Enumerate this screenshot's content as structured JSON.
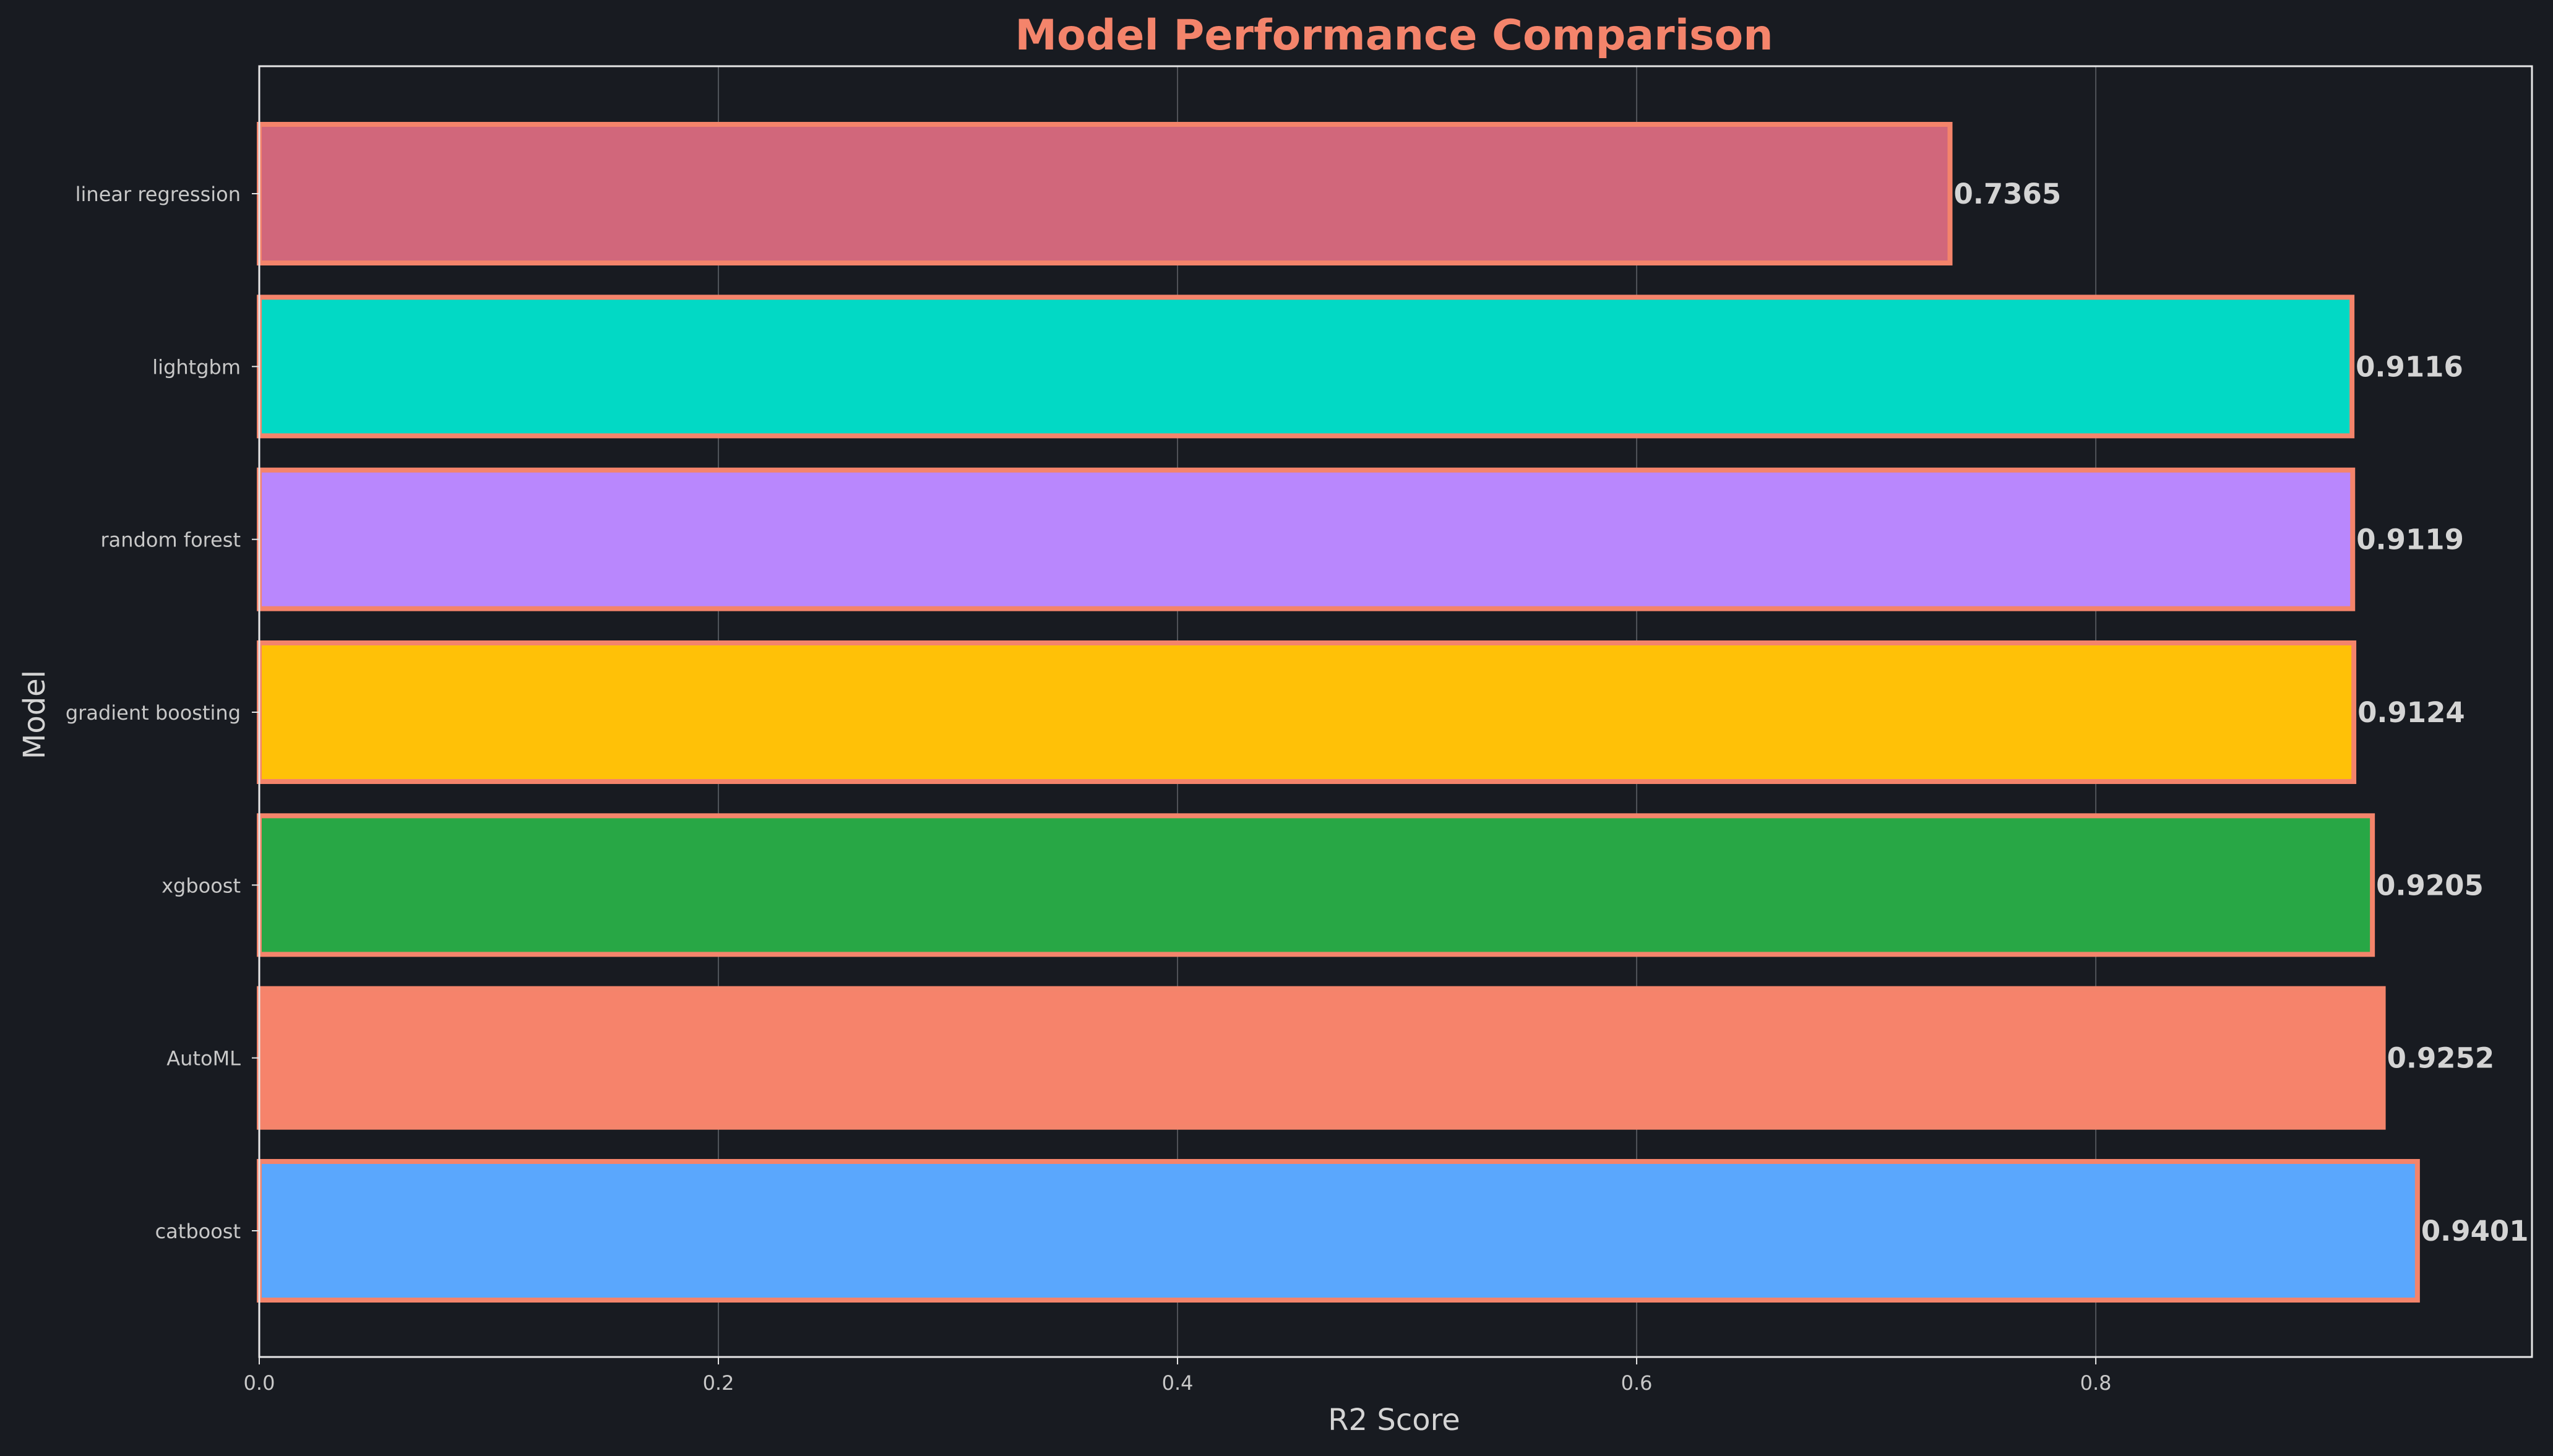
{
  "colors": {
    "background": "#181b21",
    "title": "#f4846b",
    "text": "#d4d4d4",
    "tick_text": "#c8c8c8",
    "axes": "#e6e6e6",
    "grid": "#5a5d63",
    "bar_edge": "#f4846b"
  },
  "chart_data": {
    "type": "bar",
    "orientation": "horizontal",
    "title": "Model Performance Comparison",
    "xlabel": "R2 Score",
    "ylabel": "Model",
    "xlim": [
      0,
      0.99
    ],
    "xticks": [
      0.0,
      0.2,
      0.4,
      0.6,
      0.8
    ],
    "xtick_labels": [
      "0.0",
      "0.2",
      "0.4",
      "0.6",
      "0.8"
    ],
    "grid": "vertical",
    "categories": [
      "linear regression",
      "lightgbm",
      "random forest",
      "gradient boosting",
      "xgboost",
      "AutoML",
      "catboost"
    ],
    "values": [
      0.7365,
      0.9116,
      0.9119,
      0.9124,
      0.9205,
      0.9252,
      0.9401
    ],
    "value_labels": [
      "0.7365",
      "0.9116",
      "0.9119",
      "0.9124",
      "0.9205",
      "0.9252",
      "0.9401"
    ],
    "bar_colors": [
      "#d1677b",
      "#02d9c5",
      "#b987fd",
      "#ffc107",
      "#28a745",
      "#f6836b",
      "#5aa7fd"
    ]
  }
}
